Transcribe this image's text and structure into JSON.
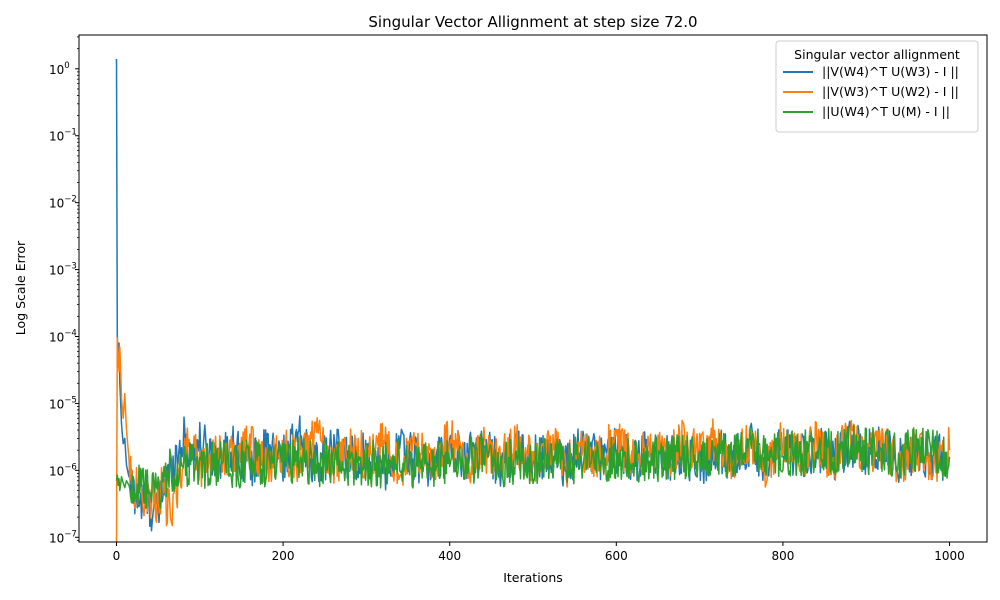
{
  "chart_data": {
    "type": "line",
    "title": "Singular Vector Allignment at step size 72.0",
    "xlabel": "Iterations",
    "ylabel": "Log Scale Error",
    "xlim": [
      -45,
      1045
    ],
    "ylim": [
      8.5e-08,
      3.2
    ],
    "y_scale": "log",
    "x_ticks": [
      0,
      200,
      400,
      600,
      800,
      1000
    ],
    "y_ticks": [
      {
        "value": 1e-07,
        "base": "10",
        "exp": "−7"
      },
      {
        "value": 1e-06,
        "base": "10",
        "exp": "−6"
      },
      {
        "value": 1e-05,
        "base": "10",
        "exp": "−5"
      },
      {
        "value": 0.0001,
        "base": "10",
        "exp": "−4"
      },
      {
        "value": 0.001,
        "base": "10",
        "exp": "−3"
      },
      {
        "value": 0.01,
        "base": "10",
        "exp": "−2"
      },
      {
        "value": 0.1,
        "base": "10",
        "exp": "−1"
      },
      {
        "value": 1,
        "base": "10",
        "exp": "0"
      }
    ],
    "grid": false,
    "legend": {
      "title": "Singular vector allignment",
      "placement": "top-right"
    },
    "series": [
      {
        "name": "||V(W4)^T U(W3) - I ||",
        "color": "#1f77b4",
        "x": [
          0,
          1,
          2,
          3,
          4,
          6,
          8,
          10,
          12,
          15,
          20,
          25,
          30,
          35,
          40,
          45,
          50,
          55,
          60,
          65,
          70,
          75,
          80,
          90,
          100,
          120,
          140,
          160,
          180,
          200,
          220,
          240,
          260,
          280,
          300,
          320,
          340,
          360,
          380,
          400,
          420,
          440,
          460,
          480,
          500,
          520,
          540,
          560,
          580,
          600,
          620,
          640,
          660,
          680,
          700,
          720,
          740,
          760,
          780,
          800,
          820,
          840,
          860,
          880,
          900,
          920,
          940,
          960,
          980,
          1000
        ],
        "y": [
          1.4,
          0.0001,
          3.5e-05,
          8e-05,
          2e-05,
          5e-06,
          2.5e-06,
          3e-06,
          1.2e-06,
          8e-07,
          5e-07,
          4e-07,
          3e-07,
          3.5e-07,
          2.5e-07,
          3e-07,
          2e-07,
          5e-07,
          7e-07,
          1e-06,
          1.5e-06,
          2e-06,
          3e-06,
          1.8e-06,
          2.5e-06,
          1.5e-06,
          2.2e-06,
          1.2e-06,
          2e-06,
          1.5e-06,
          3e-06,
          1.2e-06,
          2e-06,
          1.5e-06,
          1.8e-06,
          1e-06,
          2.2e-06,
          1.5e-06,
          1.2e-06,
          2e-06,
          1.6e-06,
          2.4e-06,
          1.2e-06,
          2e-06,
          1.5e-06,
          1.8e-06,
          1.2e-06,
          2.5e-06,
          1.5e-06,
          2e-06,
          1.3e-06,
          2.2e-06,
          1.5e-06,
          1.8e-06,
          1.2e-06,
          2e-06,
          1.5e-06,
          2.5e-06,
          1.4e-06,
          2e-06,
          1.6e-06,
          2.2e-06,
          1.5e-06,
          2.5e-06,
          1.8e-06,
          2.2e-06,
          1.4e-06,
          2e-06,
          1.6e-06,
          1.5e-06
        ]
      },
      {
        "name": "||V(W3)^T U(W2) - I ||",
        "color": "#ff7f0e",
        "x": [
          0,
          1,
          2,
          3,
          4,
          6,
          8,
          10,
          12,
          15,
          20,
          25,
          30,
          35,
          40,
          45,
          50,
          55,
          60,
          65,
          70,
          75,
          80,
          90,
          100,
          120,
          140,
          160,
          180,
          200,
          220,
          240,
          260,
          280,
          300,
          320,
          340,
          360,
          380,
          400,
          420,
          440,
          460,
          480,
          500,
          520,
          540,
          560,
          580,
          600,
          620,
          640,
          660,
          680,
          700,
          720,
          740,
          760,
          780,
          800,
          820,
          840,
          860,
          880,
          900,
          920,
          940,
          960,
          980,
          1000
        ],
        "y": [
          8e-08,
          9.5e-05,
          5e-05,
          3e-05,
          7e-05,
          1.2e-05,
          6e-06,
          1.4e-05,
          4e-06,
          1.5e-06,
          6e-07,
          5e-07,
          4e-07,
          5e-07,
          3.5e-07,
          4e-07,
          3e-07,
          6e-07,
          3e-07,
          2e-07,
          4e-07,
          8e-07,
          1.5e-06,
          3e-06,
          1.2e-06,
          2e-06,
          1.5e-06,
          2.5e-06,
          1e-06,
          2e-06,
          1.4e-06,
          3.5e-06,
          1.2e-06,
          2.2e-06,
          1.6e-06,
          2.4e-06,
          1.1e-06,
          2e-06,
          1.5e-06,
          2.8e-06,
          1.2e-06,
          2e-06,
          1.5e-06,
          2.2e-06,
          1.4e-06,
          2.5e-06,
          1.2e-06,
          2e-06,
          1.6e-06,
          3e-06,
          1.3e-06,
          2.4e-06,
          1.5e-06,
          2.6e-06,
          1.8e-06,
          3e-06,
          1.4e-06,
          2.5e-06,
          1.2e-06,
          2.8e-06,
          1.6e-06,
          2.5e-06,
          1.4e-06,
          3e-06,
          1.5e-06,
          2.5e-06,
          1.1e-06,
          2.2e-06,
          1.4e-06,
          2e-06
        ]
      },
      {
        "name": "||U(W4)^T U(M) - I ||",
        "color": "#2ca02c",
        "x": [
          0,
          1,
          2,
          3,
          4,
          6,
          8,
          10,
          12,
          15,
          20,
          25,
          30,
          35,
          40,
          45,
          50,
          55,
          60,
          65,
          70,
          75,
          80,
          90,
          100,
          120,
          140,
          160,
          180,
          200,
          220,
          240,
          260,
          280,
          300,
          320,
          340,
          360,
          380,
          400,
          420,
          440,
          460,
          480,
          500,
          520,
          540,
          560,
          580,
          600,
          620,
          640,
          660,
          680,
          700,
          720,
          740,
          760,
          780,
          800,
          820,
          840,
          860,
          880,
          900,
          920,
          940,
          960,
          980,
          1000
        ],
        "y": [
          7e-07,
          8.5e-07,
          6e-07,
          7.5e-07,
          5e-07,
          8e-07,
          6.5e-07,
          5.5e-07,
          7e-07,
          6e-07,
          5e-07,
          6.5e-07,
          4.5e-07,
          5.5e-07,
          4e-07,
          5e-07,
          4.5e-07,
          6e-07,
          8e-07,
          1e-06,
          9e-07,
          1.2e-06,
          1e-06,
          1.3e-06,
          1.1e-06,
          1.3e-06,
          1.1e-06,
          1.4e-06,
          1.2e-06,
          1.2e-06,
          1.5e-06,
          1.2e-06,
          1.4e-06,
          1.1e-06,
          1.3e-06,
          1.2e-06,
          1.4e-06,
          1.1e-06,
          1.2e-06,
          1.5e-06,
          1.3e-06,
          1.6e-06,
          1.2e-06,
          1.4e-06,
          1.3e-06,
          1.5e-06,
          1.2e-06,
          1.6e-06,
          1.4e-06,
          1.5e-06,
          1.3e-06,
          1.6e-06,
          1.4e-06,
          1.7e-06,
          1.5e-06,
          1.8e-06,
          1.5e-06,
          2e-06,
          1.6e-06,
          1.9e-06,
          1.7e-06,
          2.1e-06,
          1.8e-06,
          2.2e-06,
          1.9e-06,
          2.1e-06,
          1.6e-06,
          2e-06,
          1.8e-06,
          1.6e-06
        ]
      }
    ]
  }
}
